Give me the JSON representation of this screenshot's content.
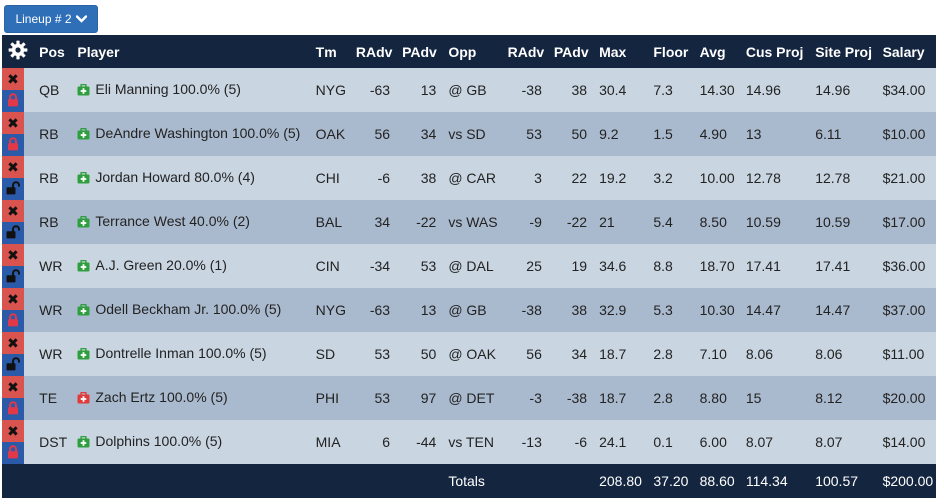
{
  "lineup_button": {
    "label": "Lineup # 2"
  },
  "columns": [
    "Pos",
    "Player",
    "Tm",
    "RAdv",
    "PAdv",
    "Opp",
    "RAdv",
    "PAdv",
    "Max",
    "Floor",
    "Avg",
    "Cus Proj",
    "Site Proj",
    "Salary"
  ],
  "rows": [
    {
      "pos": "QB",
      "player": "Eli Manning 100.0% (5)",
      "icon_color": "green",
      "locked": true,
      "tm": "NYG",
      "radv": "-63",
      "padv": "13",
      "opp": "@ GB",
      "radv2": "-38",
      "padv2": "38",
      "max": "30.4",
      "floor": "7.3",
      "avg": "14.30",
      "cus": "14.96",
      "site": "14.96",
      "salary": "$34.00"
    },
    {
      "pos": "RB",
      "player": "DeAndre Washington 100.0% (5)",
      "icon_color": "green",
      "locked": true,
      "tm": "OAK",
      "radv": "56",
      "padv": "34",
      "opp": "vs SD",
      "radv2": "53",
      "padv2": "50",
      "max": "9.2",
      "floor": "1.5",
      "avg": "4.90",
      "cus": "13",
      "site": "6.11",
      "salary": "$10.00"
    },
    {
      "pos": "RB",
      "player": "Jordan Howard 80.0% (4)",
      "icon_color": "green",
      "locked": false,
      "tm": "CHI",
      "radv": "-6",
      "padv": "38",
      "opp": "@ CAR",
      "radv2": "3",
      "padv2": "22",
      "max": "19.2",
      "floor": "3.2",
      "avg": "10.00",
      "cus": "12.78",
      "site": "12.78",
      "salary": "$21.00"
    },
    {
      "pos": "RB",
      "player": "Terrance West 40.0% (2)",
      "icon_color": "green",
      "locked": false,
      "tm": "BAL",
      "radv": "34",
      "padv": "-22",
      "opp": "vs WAS",
      "radv2": "-9",
      "padv2": "-22",
      "max": "21",
      "floor": "5.4",
      "avg": "8.50",
      "cus": "10.59",
      "site": "10.59",
      "salary": "$17.00"
    },
    {
      "pos": "WR",
      "player": "A.J. Green 20.0% (1)",
      "icon_color": "green",
      "locked": false,
      "tm": "CIN",
      "radv": "-34",
      "padv": "53",
      "opp": "@ DAL",
      "radv2": "25",
      "padv2": "19",
      "max": "34.6",
      "floor": "8.8",
      "avg": "18.70",
      "cus": "17.41",
      "site": "17.41",
      "salary": "$36.00"
    },
    {
      "pos": "WR",
      "player": "Odell Beckham Jr. 100.0% (5)",
      "icon_color": "green",
      "locked": true,
      "tm": "NYG",
      "radv": "-63",
      "padv": "13",
      "opp": "@ GB",
      "radv2": "-38",
      "padv2": "38",
      "max": "32.9",
      "floor": "5.3",
      "avg": "10.30",
      "cus": "14.47",
      "site": "14.47",
      "salary": "$37.00"
    },
    {
      "pos": "WR",
      "player": "Dontrelle Inman 100.0% (5)",
      "icon_color": "green",
      "locked": false,
      "tm": "SD",
      "radv": "53",
      "padv": "50",
      "opp": "@ OAK",
      "radv2": "56",
      "padv2": "34",
      "max": "18.7",
      "floor": "2.8",
      "avg": "7.10",
      "cus": "8.06",
      "site": "8.06",
      "salary": "$11.00"
    },
    {
      "pos": "TE",
      "player": "Zach Ertz 100.0% (5)",
      "icon_color": "red",
      "locked": true,
      "tm": "PHI",
      "radv": "53",
      "padv": "97",
      "opp": "@ DET",
      "radv2": "-3",
      "padv2": "-38",
      "max": "18.7",
      "floor": "2.8",
      "avg": "8.80",
      "cus": "15",
      "site": "8.12",
      "salary": "$20.00"
    },
    {
      "pos": "DST",
      "player": "Dolphins 100.0% (5)",
      "icon_color": "green",
      "locked": true,
      "tm": "MIA",
      "radv": "6",
      "padv": "-44",
      "opp": "vs TEN",
      "radv2": "-13",
      "padv2": "-6",
      "max": "24.1",
      "floor": "0.1",
      "avg": "6.00",
      "cus": "8.07",
      "site": "8.07",
      "salary": "$14.00"
    }
  ],
  "totals": {
    "label": "Totals",
    "max": "208.80",
    "floor": "37.20",
    "avg": "88.60",
    "cus": "114.34",
    "site": "100.57",
    "salary": "$200.00"
  },
  "colors": {
    "header_bg": "#14253f",
    "row_light": "#c9d5e1",
    "row_dark": "#aabace",
    "remove_red": "#d9534f",
    "lock_blue": "#2a5aa8",
    "icon_green": "#2e9e3e",
    "icon_red": "#e03a3a"
  },
  "icons": {
    "settings": "gear-icon",
    "remove": "x-icon",
    "lock": "lock-icon",
    "unlock": "unlock-icon",
    "player": "medkit-icon",
    "dropdown": "chevron-down-icon"
  },
  "x_glyph": "✖"
}
